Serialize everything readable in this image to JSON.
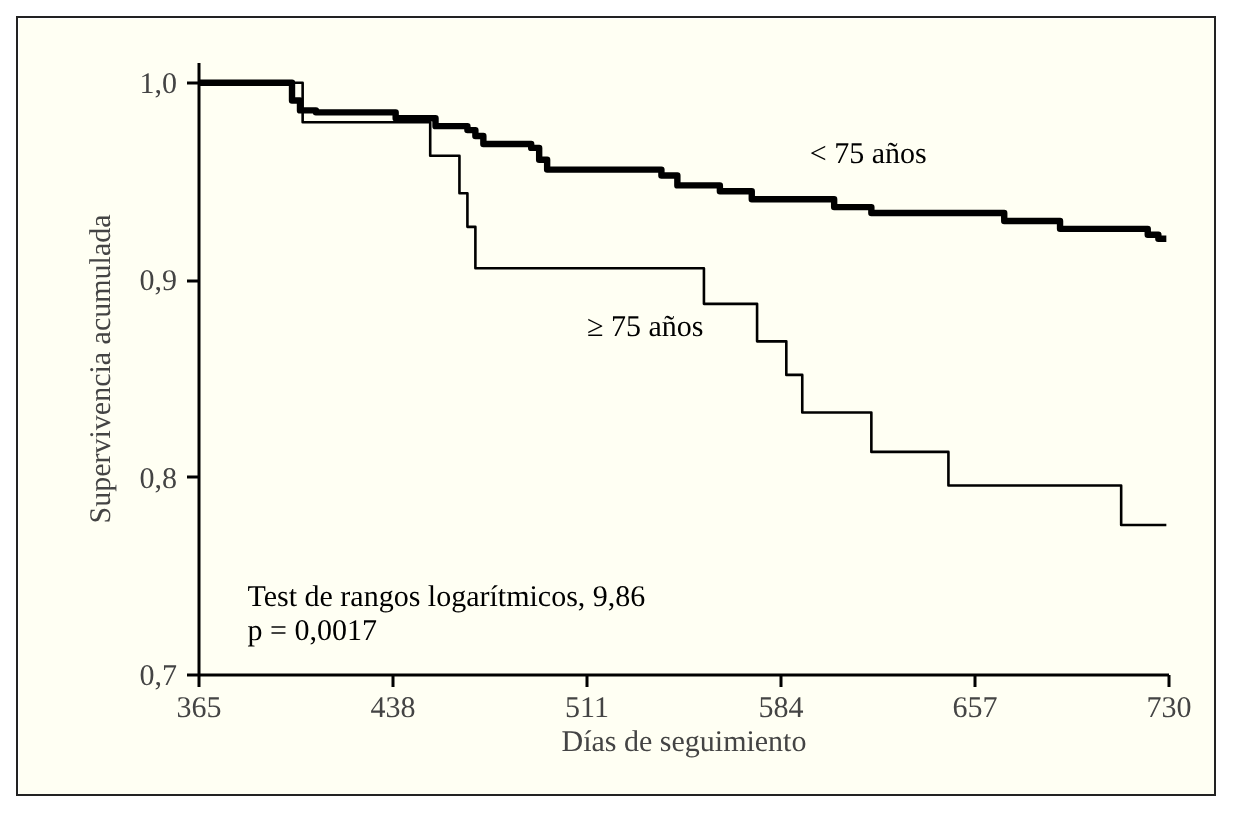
{
  "chart_data": {
    "type": "step",
    "xlabel": "Días de seguimiento",
    "ylabel": "Supervivencia acumulada",
    "xlim": [
      365,
      730
    ],
    "ylim": [
      0.7,
      1.01
    ],
    "xticks": [
      365,
      438,
      511,
      584,
      657,
      730
    ],
    "yticks": [
      {
        "value": 0.7,
        "label": "0,7"
      },
      {
        "value": 0.8,
        "label": "0,8"
      },
      {
        "value": 0.9,
        "label": "0,9"
      },
      {
        "value": 1.0,
        "label": "1,0"
      }
    ],
    "grid": false,
    "marker": "none",
    "line_style": "solid",
    "series": [
      {
        "name": "< 75 años",
        "color": "#000000",
        "x": [
          365,
          400,
          403,
          409,
          439,
          454,
          466,
          469,
          472,
          490,
          493,
          496,
          539,
          545,
          561,
          573,
          604,
          618,
          668,
          689,
          722,
          726,
          729
        ],
        "values": [
          1.0,
          0.991,
          0.986,
          0.985,
          0.982,
          0.978,
          0.976,
          0.973,
          0.969,
          0.967,
          0.961,
          0.956,
          0.953,
          0.948,
          0.945,
          0.941,
          0.937,
          0.934,
          0.93,
          0.926,
          0.923,
          0.921,
          0.921
        ]
      },
      {
        "name": "≥ 75 años",
        "color": "#000000",
        "x": [
          365,
          404,
          452,
          463,
          466,
          469,
          555,
          575,
          586,
          592,
          618,
          647,
          712,
          729
        ],
        "values": [
          1.0,
          0.98,
          0.963,
          0.944,
          0.927,
          0.906,
          0.888,
          0.869,
          0.852,
          0.833,
          0.813,
          0.796,
          0.776,
          0.776
        ]
      }
    ],
    "annotations": [
      "Test de rangos logarítmicos, 9,86",
      "p = 0,0017"
    ]
  }
}
